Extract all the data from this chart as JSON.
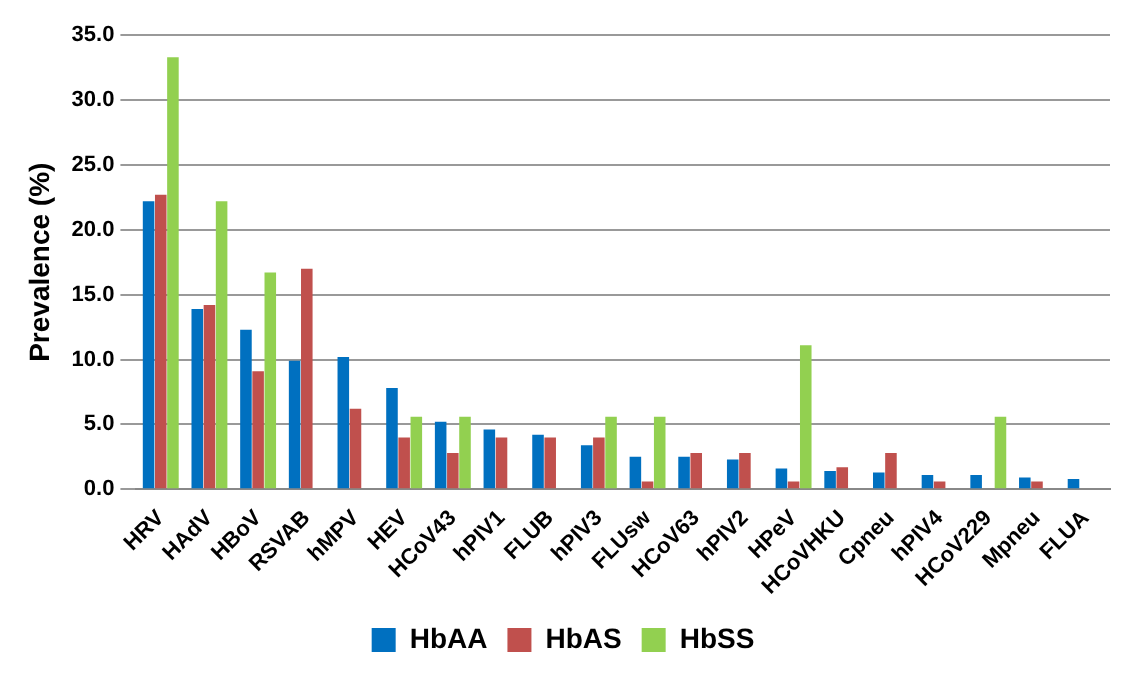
{
  "chart_data": {
    "type": "bar",
    "ylabel": "Prevalence (%)",
    "categories": [
      "HRV",
      "HAdV",
      "HBoV",
      "RSVAB",
      "hMPV",
      "HEV",
      "HCoV43",
      "hPIV1",
      "FLUB",
      "hPIV3",
      "FLUsw",
      "HCoV63",
      "hPIV2",
      "HPeV",
      "HCoVHKU",
      "Cpneu",
      "hPIV4",
      "HCoV229",
      "Mpneu",
      "FLUA"
    ],
    "series": [
      {
        "name": "HbAA",
        "color": "#0070c0",
        "values": [
          22.2,
          13.9,
          12.3,
          9.9,
          10.2,
          7.8,
          5.2,
          4.6,
          4.2,
          3.4,
          2.5,
          2.5,
          2.3,
          1.6,
          1.4,
          1.3,
          1.1,
          1.1,
          0.9,
          0.8
        ]
      },
      {
        "name": "HbAS",
        "color": "#c0504d",
        "values": [
          22.7,
          14.2,
          9.1,
          17.0,
          6.2,
          4.0,
          2.8,
          4.0,
          4.0,
          4.0,
          0.6,
          2.8,
          2.8,
          0.6,
          1.7,
          2.8,
          0.6,
          0,
          0.6,
          0
        ]
      },
      {
        "name": "HbSS",
        "color": "#92d050",
        "values": [
          33.3,
          22.2,
          16.7,
          0,
          0,
          5.6,
          5.6,
          0,
          0,
          5.6,
          5.6,
          0,
          0,
          11.1,
          0,
          0,
          0,
          5.6,
          0,
          0
        ]
      }
    ],
    "ylim": [
      0,
      35
    ],
    "yticks": [
      {
        "value": 0,
        "label": "0.0"
      },
      {
        "value": 5,
        "label": "5.0"
      },
      {
        "value": 10,
        "label": "10.0"
      },
      {
        "value": 15,
        "label": "15.0"
      },
      {
        "value": 20,
        "label": "20.0"
      },
      {
        "value": 25,
        "label": "25.0"
      },
      {
        "value": 30,
        "label": "30.0"
      },
      {
        "value": 35,
        "label": "35.0"
      }
    ],
    "grid": "y",
    "legend": "bottom"
  }
}
